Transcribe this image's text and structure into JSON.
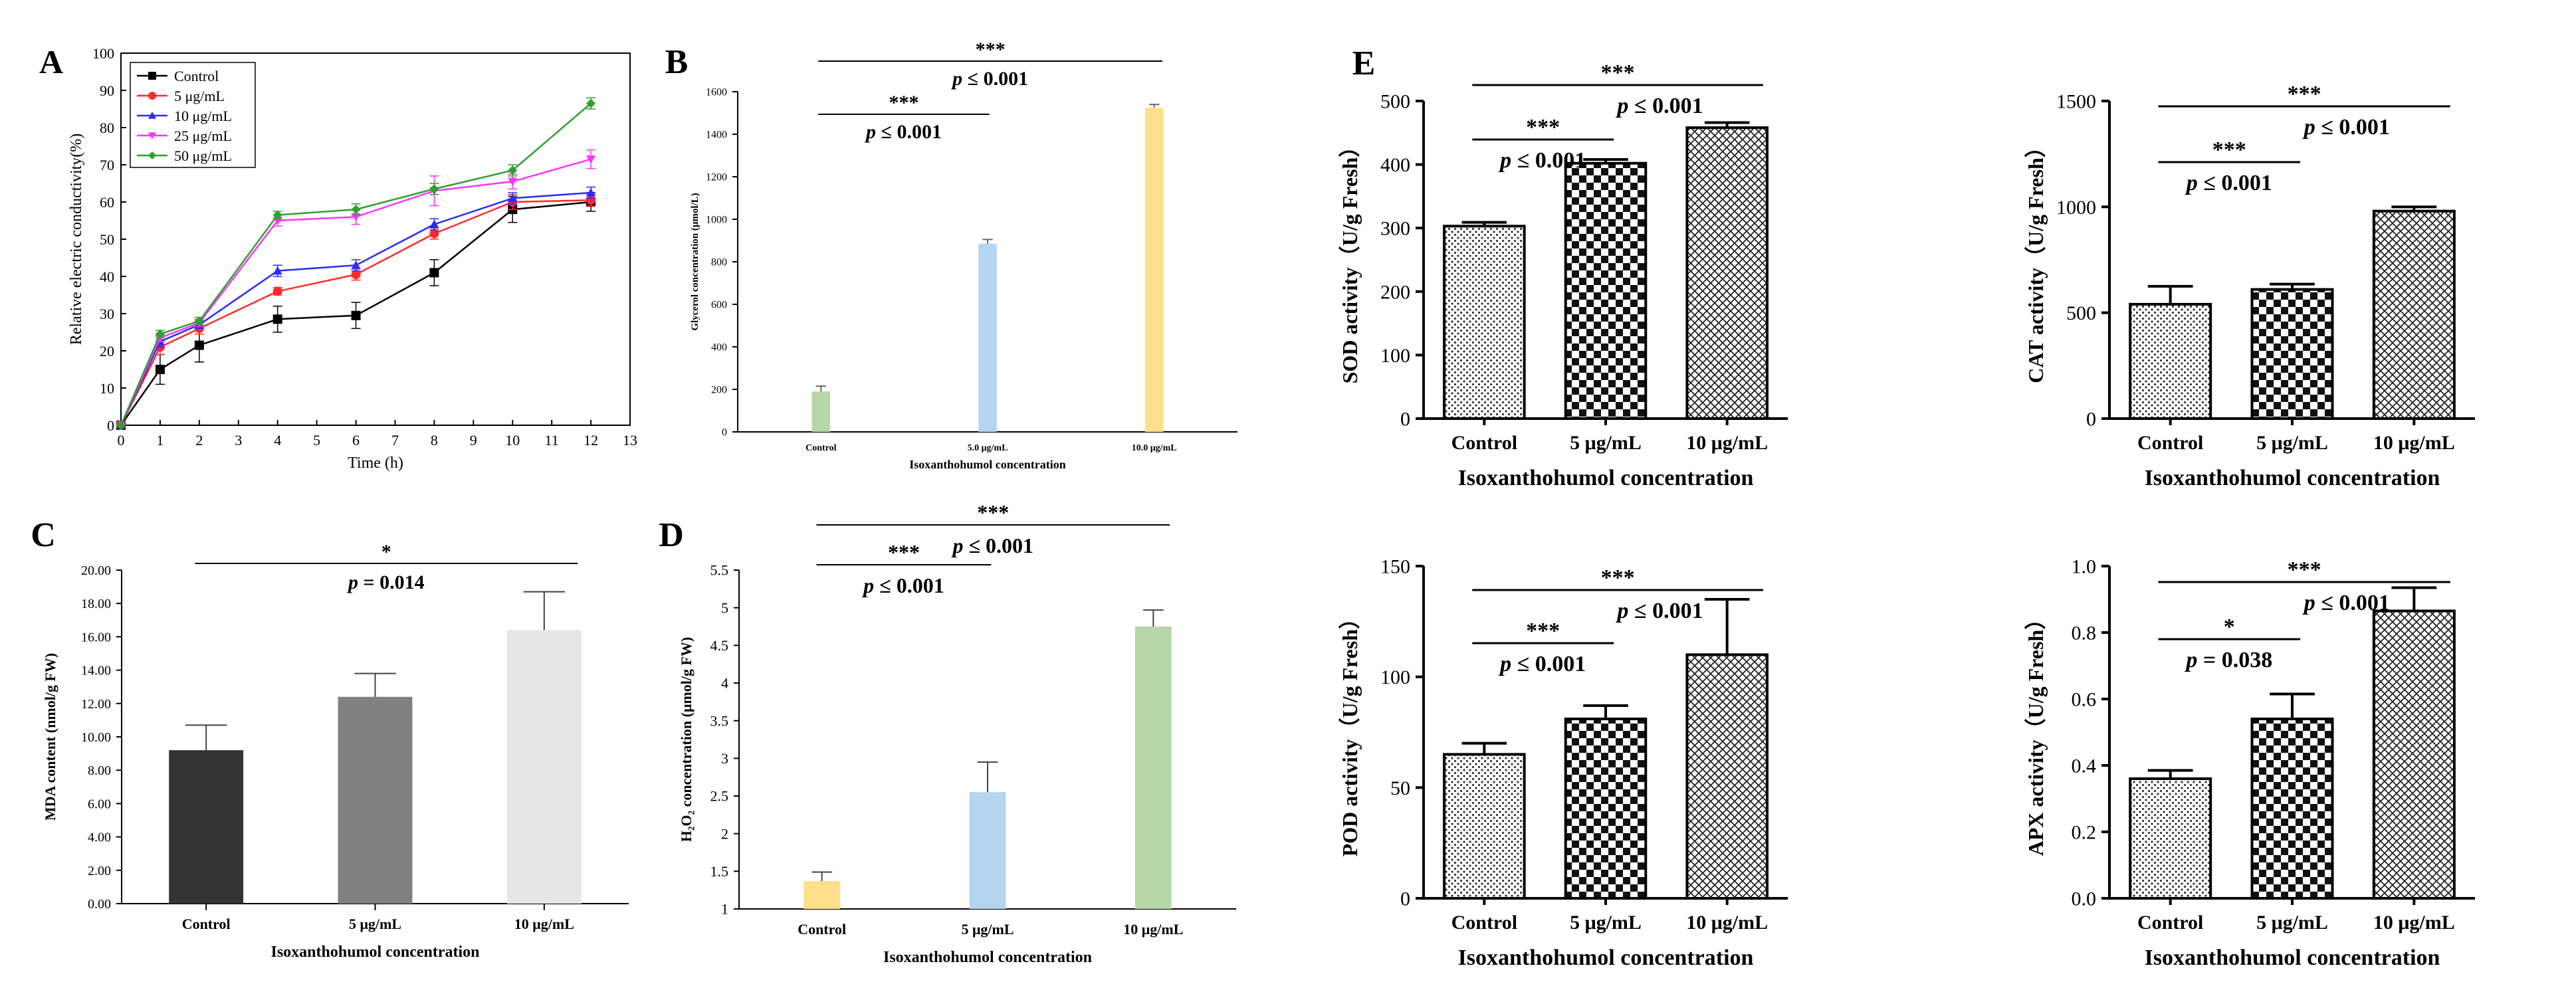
{
  "colors": {
    "control": "#000000",
    "s5": "#ff2a2a",
    "s10": "#2a2aff",
    "s25": "#ff33ff",
    "s50": "#2ea02e",
    "b_control": "#b6d7a8",
    "b_5": "#b4d4ef",
    "b_10": "#ffe08a",
    "c_control": "#333333",
    "c_5": "#808080",
    "c_10": "#e6e6e6",
    "d_control": "#ffe08a",
    "d_5": "#b4d4ef",
    "d_10": "#b6d7a8"
  },
  "chart_data": [
    {
      "id": "A",
      "panel_label": "A",
      "type": "line",
      "xlabel": "Time (h)",
      "ylabel": "Relative electric conductivity(%)",
      "xlim": [
        0,
        13
      ],
      "ylim": [
        0,
        100
      ],
      "xticks": [
        0,
        1,
        2,
        3,
        4,
        5,
        6,
        7,
        8,
        9,
        10,
        11,
        12,
        13
      ],
      "yticks": [
        0,
        10,
        20,
        30,
        40,
        50,
        60,
        70,
        80,
        90,
        100
      ],
      "x": [
        0,
        1,
        2,
        4,
        6,
        8,
        10,
        12
      ],
      "legend_position": "top-left",
      "series": [
        {
          "name": "Control",
          "marker": "square",
          "color_key": "control",
          "values": [
            0,
            15,
            21.5,
            28.5,
            29.5,
            41,
            58,
            60
          ],
          "errors": [
            0,
            4,
            4.5,
            3.5,
            3.5,
            3.5,
            3.5,
            2.5
          ]
        },
        {
          "name": "5 μg/mL",
          "marker": "circle",
          "color_key": "s5",
          "values": [
            0,
            21,
            26,
            36,
            40.5,
            51.5,
            60,
            60.5
          ],
          "errors": [
            0,
            2,
            1.5,
            1,
            1.5,
            1.5,
            2,
            1.5
          ]
        },
        {
          "name": "10 μg/mL",
          "marker": "triangle",
          "color_key": "s10",
          "values": [
            0,
            22.5,
            27,
            41.5,
            43,
            54,
            61,
            62.5
          ],
          "errors": [
            0,
            1.5,
            1,
            1.5,
            1.5,
            1.5,
            1.5,
            1.5
          ]
        },
        {
          "name": "25 μg/mL",
          "marker": "triangle-down",
          "color_key": "s25",
          "values": [
            0,
            23.5,
            27.5,
            55,
            56,
            63,
            65.5,
            71.5
          ],
          "errors": [
            0,
            1,
            1,
            1.5,
            2,
            4,
            2,
            2.5
          ]
        },
        {
          "name": "50 μg/mL",
          "marker": "diamond",
          "color_key": "s50",
          "values": [
            0,
            24.5,
            28,
            56.5,
            58,
            63.5,
            68.5,
            86.5
          ],
          "errors": [
            0,
            1,
            1,
            1,
            1.5,
            1.5,
            1.5,
            1.5
          ]
        }
      ]
    },
    {
      "id": "B",
      "panel_label": "B",
      "type": "bar",
      "title": "",
      "xlabel": "Isoxanthohumol concentration",
      "ylabel": "Glycerol concentration (μmol/L)",
      "categories": [
        "Control",
        "5.0 μg/mL",
        "10.0 μg/mL"
      ],
      "values": [
        190,
        885,
        1525
      ],
      "errors": [
        25,
        20,
        15
      ],
      "ylim": [
        0,
        1600
      ],
      "yticks": [
        0,
        200,
        400,
        600,
        800,
        1000,
        1200,
        1400,
        1600
      ],
      "bar_color_keys": [
        "b_control",
        "b_5",
        "b_10"
      ],
      "annotations": [
        {
          "from": 0,
          "to": 1,
          "stars": "***",
          "p": "p ≤ 0.001"
        },
        {
          "from": 0,
          "to": 2,
          "stars": "***",
          "p": "p ≤ 0.001"
        }
      ]
    },
    {
      "id": "C",
      "panel_label": "C",
      "type": "bar",
      "xlabel": "Isoxanthohumol concentration",
      "ylabel": "MDA content (nmol/g FW)",
      "categories": [
        "Control",
        "5 μg/mL",
        "10 μg/mL"
      ],
      "values": [
        9.2,
        12.4,
        16.4
      ],
      "errors": [
        1.5,
        1.4,
        2.3
      ],
      "ylim": [
        0,
        20
      ],
      "yticks": [
        0,
        2,
        4,
        6,
        8,
        10,
        12,
        14,
        16,
        18,
        20
      ],
      "ytick_labels": [
        "0.00",
        "2.00",
        "4.00",
        "6.00",
        "8.00",
        "10.00",
        "12.00",
        "14.00",
        "16.00",
        "18.00",
        "20.00"
      ],
      "bar_color_keys": [
        "c_control",
        "c_5",
        "c_10"
      ],
      "annotations": [
        {
          "from": 0,
          "to": 2,
          "stars": "*",
          "p": "p = 0.014"
        }
      ]
    },
    {
      "id": "D",
      "panel_label": "D",
      "type": "bar",
      "xlabel": "Isoxanthohumol concentration",
      "ylabel": "H₂O₂ concentration (μmol/g FW)",
      "categories": [
        "Control",
        "5 μg/mL",
        "10 μg/mL"
      ],
      "values": [
        1.37,
        2.55,
        4.75
      ],
      "errors": [
        0.12,
        0.4,
        0.22
      ],
      "ylim": [
        1,
        5.5
      ],
      "yticks": [
        1,
        1.5,
        2,
        2.5,
        3,
        3.5,
        4,
        4.5,
        5,
        5.5
      ],
      "ytick_labels": [
        "1",
        "1.5",
        "2",
        "2.5",
        "3",
        "3.5",
        "4",
        "4.5",
        "5",
        "5.5"
      ],
      "bar_color_keys": [
        "d_control",
        "d_5",
        "d_10"
      ],
      "annotations": [
        {
          "from": 0,
          "to": 1,
          "stars": "***",
          "p": "p ≤ 0.001"
        },
        {
          "from": 0,
          "to": 2,
          "stars": "***",
          "p": "p ≤ 0.001"
        }
      ]
    },
    {
      "id": "SOD",
      "panel_label": "E",
      "type": "bar",
      "xlabel": "Isoxanthohumol concentration",
      "ylabel": "SOD activity（U/g Fresh）",
      "categories": [
        "Control",
        "5 μg/mL",
        "10 μg/mL"
      ],
      "values": [
        303,
        402,
        458
      ],
      "errors": [
        6,
        6,
        8
      ],
      "ylim": [
        0,
        500
      ],
      "yticks": [
        0,
        100,
        200,
        300,
        400,
        500
      ],
      "ytick_labels": [
        "0",
        "100",
        "200",
        "300",
        "400",
        "500"
      ],
      "patterns": [
        "dots",
        "checker",
        "cross"
      ],
      "annotations": [
        {
          "from": 0,
          "to": 1,
          "stars": "***",
          "p": "p ≤ 0.001"
        },
        {
          "from": 0,
          "to": 2,
          "stars": "***",
          "p": "p ≤ 0.001"
        }
      ]
    },
    {
      "id": "CAT",
      "type": "bar",
      "xlabel": "Isoxanthohumol concentration",
      "ylabel": "CAT activity（U/g Fresh）",
      "categories": [
        "Control",
        "5 μg/mL",
        "10 μg/mL"
      ],
      "values": [
        540,
        610,
        980
      ],
      "errors": [
        85,
        25,
        20
      ],
      "ylim": [
        0,
        1500
      ],
      "yticks": [
        0,
        500,
        1000,
        1500
      ],
      "ytick_labels": [
        "0",
        "500",
        "1000",
        "1500"
      ],
      "patterns": [
        "dots",
        "checker",
        "cross"
      ],
      "annotations": [
        {
          "from": 0,
          "to": 1,
          "stars": "***",
          "p": "p ≤ 0.001"
        },
        {
          "from": 0,
          "to": 2,
          "stars": "***",
          "p": "p ≤ 0.001"
        }
      ]
    },
    {
      "id": "POD",
      "type": "bar",
      "xlabel": "Isoxanthohumol concentration",
      "ylabel": "POD activity（U/g Fresh）",
      "categories": [
        "Control",
        "5 μg/mL",
        "10 μg/mL"
      ],
      "values": [
        65,
        81,
        110
      ],
      "errors": [
        5,
        6,
        25
      ],
      "ylim": [
        0,
        150
      ],
      "yticks": [
        0,
        50,
        100,
        150
      ],
      "ytick_labels": [
        "0",
        "50",
        "100",
        "150"
      ],
      "patterns": [
        "dots",
        "checker",
        "cross"
      ],
      "annotations": [
        {
          "from": 0,
          "to": 1,
          "stars": "***",
          "p": "p ≤ 0.001"
        },
        {
          "from": 0,
          "to": 2,
          "stars": "***",
          "p": "p ≤ 0.001"
        }
      ]
    },
    {
      "id": "APX",
      "type": "bar",
      "xlabel": "Isoxanthohumol concentration",
      "ylabel": "APX activity（U/g Fresh）",
      "categories": [
        "Control",
        "5 μg/mL",
        "10 μg/mL"
      ],
      "values": [
        0.36,
        0.54,
        0.865
      ],
      "errors": [
        0.025,
        0.075,
        0.07
      ],
      "ylim": [
        0,
        1.0
      ],
      "yticks": [
        0,
        0.2,
        0.4,
        0.6,
        0.8,
        1.0
      ],
      "ytick_labels": [
        "0.0",
        "0.2",
        "0.4",
        "0.6",
        "0.8",
        "1.0"
      ],
      "patterns": [
        "dots",
        "checker",
        "cross"
      ],
      "annotations": [
        {
          "from": 0,
          "to": 1,
          "stars": "*",
          "p": "p = 0.038"
        },
        {
          "from": 0,
          "to": 2,
          "stars": "***",
          "p": "p ≤ 0.001"
        }
      ]
    }
  ]
}
